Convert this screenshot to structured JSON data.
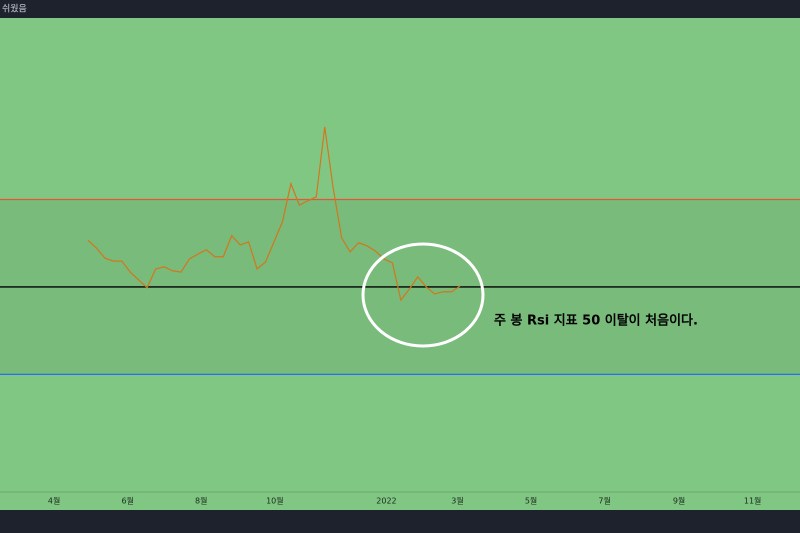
{
  "header": {
    "title": "쉬웠음"
  },
  "chart_data": {
    "type": "line",
    "annotation": "주 봉 Rsi 지표 50 이탈이 처음이다.",
    "x": [
      4,
      5,
      6,
      7,
      8,
      9,
      10,
      11,
      12,
      13,
      14,
      15,
      16,
      17,
      18,
      19,
      20,
      21,
      22,
      23,
      24,
      25,
      26,
      27,
      28,
      29,
      30,
      31,
      32,
      33,
      34,
      35,
      36,
      37,
      38,
      39,
      40,
      41,
      42,
      43,
      44,
      45,
      46,
      47,
      48
    ],
    "series": [
      {
        "color": "#d4761d",
        "values": [
          60.7,
          58.9,
          56.6,
          55.9,
          55.9,
          53.4,
          51.6,
          49.8,
          54.1,
          54.6,
          53.7,
          53.4,
          56.4,
          57.5,
          58.5,
          56.9,
          56.9,
          61.7,
          59.6,
          60.3,
          54.1,
          55.7,
          60.3,
          64.9,
          73.6,
          68.7,
          69.7,
          70.6,
          86.6,
          72.6,
          61.2,
          58.0,
          60.1,
          59.4,
          58.2,
          56.4,
          55.5,
          47.0,
          49.5,
          52.3,
          50.0,
          48.4,
          48.9,
          48.9,
          50.2
        ]
      }
    ],
    "xlim": [
      -6.4,
      88.2
    ],
    "xticks": [
      {
        "value": 0,
        "label": "4월"
      },
      {
        "value": 8.7,
        "label": "6월"
      },
      {
        "value": 17.4,
        "label": "8월"
      },
      {
        "value": 26.1,
        "label": "10월"
      },
      {
        "value": 39.3,
        "label": "2022"
      },
      {
        "value": 47.7,
        "label": "3월"
      },
      {
        "value": 56.4,
        "label": "5월"
      },
      {
        "value": 65.1,
        "label": "7월"
      },
      {
        "value": 73.9,
        "label": "9월"
      },
      {
        "value": 82.6,
        "label": "11월"
      }
    ],
    "ylim": [
      3.1,
      111.5
    ],
    "hlines": [
      {
        "value": 70,
        "color": "#e0583a"
      },
      {
        "value": 50,
        "color": "#000000"
      },
      {
        "value": 30,
        "color": "#2a6df4"
      }
    ],
    "band": [
      30,
      70
    ],
    "background": "#81c784",
    "band_color": "#78bb7a"
  }
}
